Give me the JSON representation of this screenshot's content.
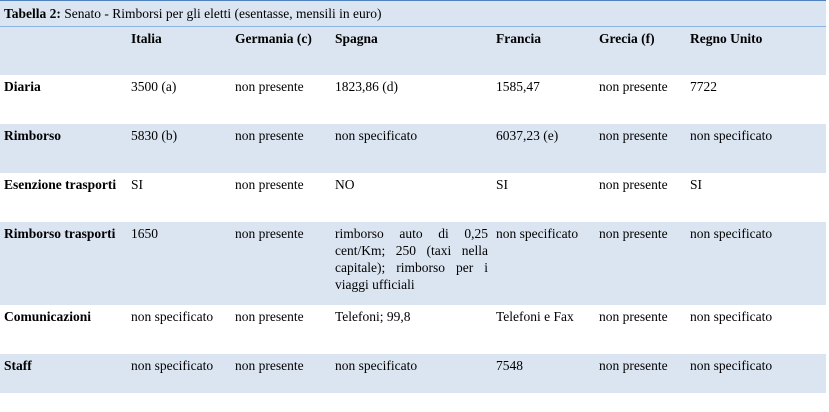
{
  "caption": {
    "label": "Tabella 2:",
    "text": " Senato - Rimborsi per gli eletti (esentasse, mensili in euro)"
  },
  "headers": [
    "",
    "Italia",
    "Germania (c)",
    "Spagna",
    "Francia",
    "Grecia (f)",
    "Regno Unito"
  ],
  "rows": [
    {
      "label": "Diaria",
      "cells": [
        "3500 (a)",
        "non presente",
        "1823,86 (d)",
        "1585,47",
        "non presente",
        "7722"
      ]
    },
    {
      "label": "Rimborso",
      "cells": [
        "5830 (b)",
        "non presente",
        "non specificato",
        "6037,23 (e)",
        "non presente",
        "non specificato"
      ]
    },
    {
      "label": "Esenzione trasporti",
      "cells": [
        "SI",
        "non presente",
        "NO",
        "SI",
        "non presente",
        "SI"
      ]
    },
    {
      "label": "Rimborso trasporti",
      "cells": [
        "1650",
        "non presente",
        "rimborso auto di 0,25 cent/Km; 250 (taxi nella capitale); rimborso per i viaggi ufficiali",
        "non specificato",
        "non presente",
        "non specificato"
      ]
    },
    {
      "label": "Comunicazioni",
      "cells": [
        "non specificato",
        "non presente",
        "Telefoni; 99,8",
        "Telefoni e Fax",
        "non presente",
        "non specificato"
      ]
    },
    {
      "label": "Staff",
      "cells": [
        "non specificato",
        "non presente",
        "non specificato",
        "7548",
        "non presente",
        "non specificato"
      ]
    }
  ]
}
